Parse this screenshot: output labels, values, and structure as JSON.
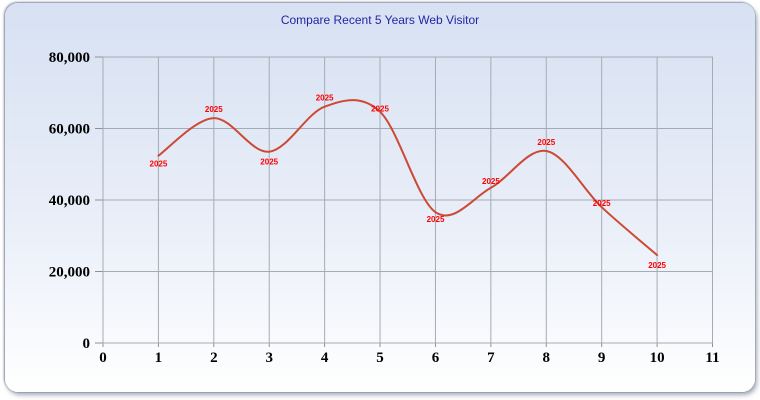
{
  "panel": {
    "gradient_top": "#d7e1f3",
    "gradient_middle": "#e9eef8",
    "gradient_bottom": "#ffffff",
    "page_background": "#ffffff"
  },
  "chart_data": {
    "type": "line",
    "title": "Compare Recent 5 Years Web Visitor",
    "title_color": "#2424a4",
    "smooth": true,
    "grid": true,
    "grid_color": "#a5abb5",
    "tick_color": "#8b919b",
    "text_color": "#000000",
    "label_color": "#ff0000",
    "xlim": [
      0,
      11
    ],
    "ylim": [
      0,
      80000
    ],
    "x_ticks": [
      0,
      1,
      2,
      3,
      4,
      5,
      6,
      7,
      8,
      9,
      10,
      11
    ],
    "x_tick_labels": [
      "0",
      "1",
      "2",
      "3",
      "4",
      "5",
      "6",
      "7",
      "8",
      "9",
      "10",
      "11"
    ],
    "y_ticks": [
      0,
      20000,
      40000,
      60000,
      80000
    ],
    "y_tick_labels": [
      "0",
      "20,000",
      "40,000",
      "60,000",
      "80,000"
    ],
    "xlabel": "",
    "ylabel": "",
    "legend": "none",
    "series": [
      {
        "name": "2025",
        "point_label": "2025",
        "color": "#cc4a33",
        "x": [
          1,
          2,
          3,
          4,
          5,
          6,
          7,
          8,
          9,
          10
        ],
        "values": [
          52400,
          62900,
          53500,
          66100,
          64700,
          36600,
          43400,
          53700,
          38000,
          24600
        ],
        "label_dy": [
          8,
          -9,
          10,
          -9,
          -3,
          7,
          -7,
          -9,
          -4,
          10
        ]
      }
    ]
  }
}
